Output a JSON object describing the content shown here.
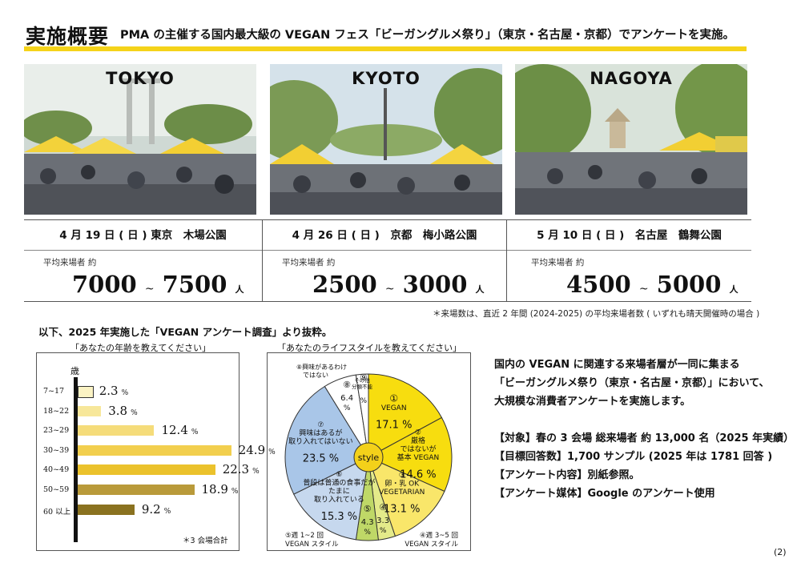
{
  "header": {
    "title": "実施概要",
    "subtitle": "PMA の主催する国内最大級の VEGAN フェス「ビーガングルメ祭り」（東京・名古屋・京都）でアンケートを実施。",
    "accent": "#f5d31a"
  },
  "venues": [
    {
      "city": "TOKYO",
      "date": "4 月 19 日 ( 日 ) 東京　木場公園",
      "label": "平均来場者 約",
      "min": "7000",
      "tilde": "~",
      "max": "7500",
      "unit": "人"
    },
    {
      "city": "KYOTO",
      "date": "4 月 26 日 ( 日 )　京都　梅小路公園",
      "label": "平均来場者 約",
      "min": "2500",
      "tilde": "~",
      "max": "3000",
      "unit": "人"
    },
    {
      "city": "NAGOYA",
      "date": "5 月 10 日 ( 日 )　名古屋　鶴舞公園",
      "label": "平均来場者 約",
      "min": "4500",
      "tilde": "~",
      "max": "5000",
      "unit": "人"
    }
  ],
  "footnote": "＊来場数は、直近 2 年間 (2024-2025) の平均来場者数 ( いずれも晴天開催時の場合 )",
  "intro": "以下、2025 年実施した「VEGAN アンケート調査」より抜粋。",
  "age_chart": {
    "title": "「あなたの年齢を教えてください」",
    "unit_label": "歳",
    "note": "＊3 会場合計",
    "categories": [
      "7~17",
      "18~22",
      "23~29",
      "30~39",
      "40~49",
      "50~59",
      "60 以上"
    ],
    "values": [
      2.3,
      3.8,
      12.4,
      24.9,
      22.3,
      18.9,
      9.2
    ],
    "value_labels": [
      "2.3",
      "3.8",
      "12.4",
      "24.9",
      "22.3",
      "18.9",
      "9.2"
    ],
    "pct": "%",
    "colors": [
      "#fbf3c4",
      "#f7e79a",
      "#f5dc7a",
      "#f2cf4e",
      "#ebc22c",
      "#b99a3a",
      "#8a7220"
    ]
  },
  "lifestyle_chart": {
    "title": "「あなたのライフスタイルを教えてください」",
    "center_label": "style",
    "slices": [
      {
        "num": "①",
        "lines": [
          "VEGAN"
        ],
        "value": "17.1",
        "percent": 17.1,
        "color": "#f7dd0f"
      },
      {
        "num": "②",
        "lines": [
          "厳格",
          "ではないが",
          "基本 VEGAN"
        ],
        "value": "14.6",
        "percent": 14.6,
        "color": "#f7dd0f"
      },
      {
        "num": "③",
        "lines": [
          "卵・乳 OK",
          "VEGETARIAN"
        ],
        "value": "13.1",
        "percent": 13.1,
        "color": "#f9e66a"
      },
      {
        "num": "④",
        "lines": [],
        "value": "3.3",
        "percent": 3.3,
        "color": "#e4ea8a"
      },
      {
        "num": "⑤",
        "lines": [],
        "value": "4.3",
        "percent": 4.3,
        "color": "#bfd867"
      },
      {
        "num": "⑥",
        "lines": [
          "普段は普通の食事だが",
          "たまに",
          "取り入れている"
        ],
        "value": "15.3",
        "percent": 15.3,
        "color": "#c6d8ee"
      },
      {
        "num": "⑦",
        "lines": [
          "興味はあるが",
          "取り入れてはいない"
        ],
        "value": "23.5",
        "percent": 23.5,
        "color": "#a9c6e8"
      },
      {
        "num": "⑧",
        "lines": [],
        "value": "6.4",
        "percent": 6.4,
        "color": "#ffffff"
      },
      {
        "num": "⑨",
        "lines": [],
        "value": "",
        "percent": 2.4,
        "color": "#ffffff"
      }
    ],
    "pct": "%",
    "callouts": {
      "c8": [
        "⑧興味があるわけ",
        "ではない"
      ],
      "c9": [
        "その他",
        "分類不能"
      ],
      "c5": [
        "⑤週 1~2 回",
        "VEGAN スタイル"
      ],
      "c4": [
        "④週 3~5 回",
        "VEGAN スタイル"
      ]
    }
  },
  "summary": {
    "lines": [
      "国内の VEGAN に関連する来場者層が一同に集まる",
      "「ビーガングルメ祭り（東京・名古屋・京都）」において、",
      "大規模な消費者アンケートを実施します。"
    ],
    "target": "【対象】春の 3 会場 総来場者 約 13,000 名（2025 年実績）",
    "responses": "【目標回答数】1,700 サンプル (2025 年は 1781 回答 )",
    "content": "【アンケート内容】別紙参照。",
    "media": "【アンケート媒体】Google のアンケート使用"
  },
  "page_number": "(2)"
}
